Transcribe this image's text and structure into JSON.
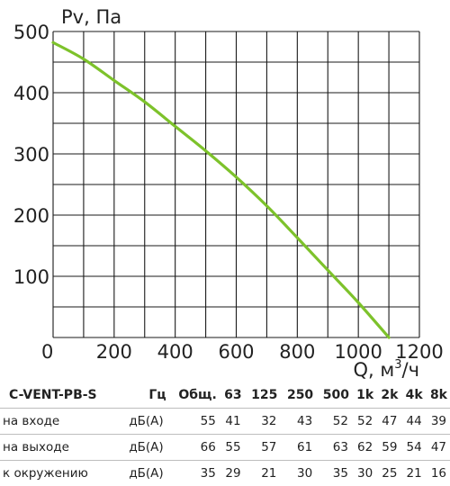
{
  "chart_data": {
    "type": "line",
    "ylabel": "Pv, Па",
    "xlabel_main": "Q, м",
    "xlabel_sup": "3",
    "xlabel_tail": "/ч",
    "xlim": [
      0,
      1200
    ],
    "ylim": [
      0,
      500
    ],
    "xticks": [
      "0",
      "200",
      "400",
      "600",
      "800",
      "1000",
      "1200"
    ],
    "yticks": [
      "100",
      "200",
      "300",
      "400",
      "500"
    ],
    "x_grid_step": 100,
    "y_grid_step": 50,
    "grid": true,
    "series": [
      {
        "color": "#7dc22b",
        "x": [
          0,
          100,
          200,
          300,
          400,
          500,
          600,
          700,
          800,
          900,
          1000,
          1100
        ],
        "y": [
          482,
          455,
          420,
          385,
          345,
          305,
          262,
          215,
          163,
          110,
          57,
          0
        ]
      }
    ]
  },
  "table": {
    "model": "C-VENT-PB-S",
    "unit_header": "Гц",
    "total_header": "Общ.",
    "bands": [
      "63",
      "125",
      "250",
      "500",
      "1k",
      "2k",
      "4k",
      "8k"
    ],
    "rows": [
      {
        "label": "на входе",
        "unit": "дБ(А)",
        "total": "55",
        "values": [
          "41",
          "32",
          "43",
          "52",
          "52",
          "47",
          "44",
          "39"
        ]
      },
      {
        "label": "на выходе",
        "unit": "дБ(А)",
        "total": "66",
        "values": [
          "55",
          "57",
          "61",
          "63",
          "62",
          "59",
          "54",
          "47"
        ]
      },
      {
        "label": "к окружению",
        "unit": "дБ(А)",
        "total": "35",
        "values": [
          "29",
          "21",
          "30",
          "35",
          "30",
          "25",
          "21",
          "16"
        ]
      }
    ]
  }
}
